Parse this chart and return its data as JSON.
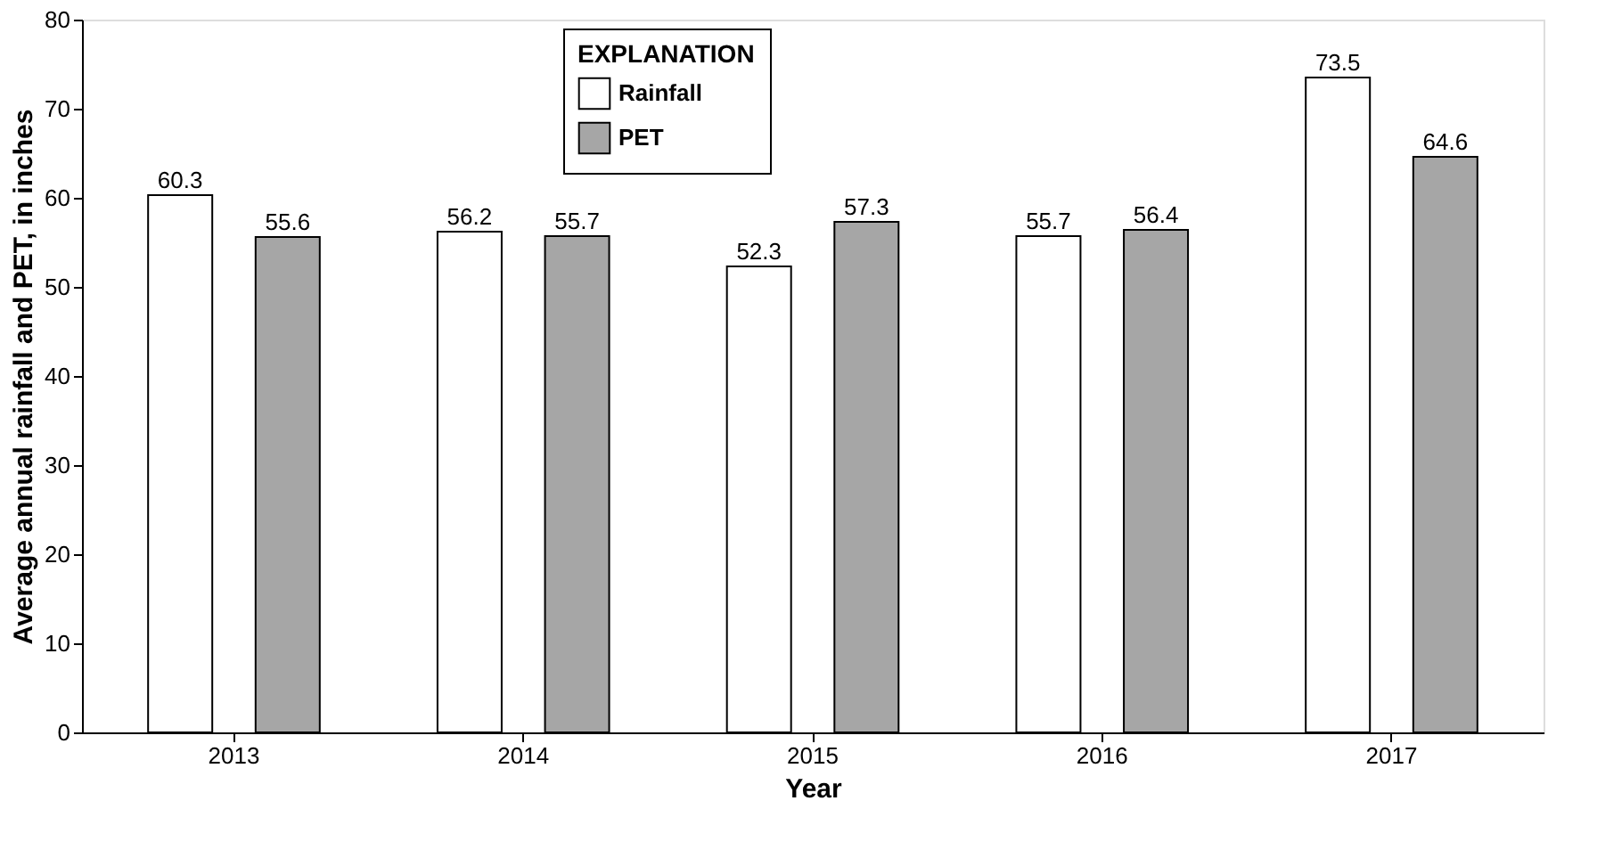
{
  "chart_data": {
    "type": "bar",
    "xlabel": "Year",
    "ylabel": "Average annual rainfall and PET, in inches",
    "legend_title": "EXPLANATION",
    "categories": [
      "2013",
      "2014",
      "2015",
      "2016",
      "2017"
    ],
    "series": [
      {
        "name": "Rainfall",
        "color": "#ffffff",
        "values": [
          60.3,
          56.2,
          52.3,
          55.7,
          73.5
        ]
      },
      {
        "name": "PET",
        "color": "#a6a6a6",
        "values": [
          55.6,
          55.7,
          57.3,
          56.4,
          64.6
        ]
      }
    ],
    "ylim": [
      0,
      80
    ],
    "yticks": [
      0,
      10,
      20,
      30,
      40,
      50,
      60,
      70,
      80
    ],
    "data_labels": true,
    "grid": false,
    "legend": "top"
  }
}
